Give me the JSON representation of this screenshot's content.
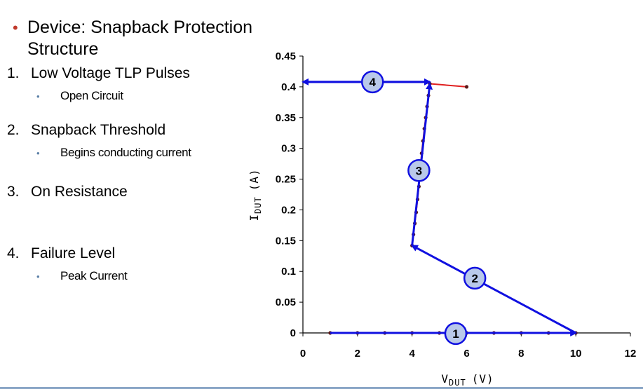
{
  "slide": {
    "heading": "Device: Snapback Protection Structure",
    "heading_line1": "Device: Snapback Protection",
    "heading_line2": "Structure",
    "items": [
      {
        "number": "1.",
        "label": "Low Voltage TLP Pulses",
        "sub": "Open Circuit"
      },
      {
        "number": "2.",
        "label": "Snapback Threshold",
        "sub": "Begins conducting current"
      },
      {
        "number": "3.",
        "label": "On Resistance",
        "sub": ""
      },
      {
        "number": "4.",
        "label": "Failure Level",
        "sub": "Peak Current"
      }
    ]
  },
  "colors": {
    "data_line": "#e02020",
    "data_marker": "#5a1a1a",
    "arrow": "#1010e0",
    "bubble_fill": "#b9c9ea",
    "bubble_stroke": "#1010e0",
    "bullet": "#c0392b"
  },
  "chart_data": {
    "type": "line",
    "title": "",
    "xlabel_main": "V",
    "xlabel_sub": "DUT",
    "xlabel_unit": "(V)",
    "ylabel_main": "I",
    "ylabel_sub": "DUT",
    "ylabel_unit": "(A)",
    "xlim": [
      0,
      12
    ],
    "ylim": [
      0,
      0.45
    ],
    "xticks": [
      "0",
      "2",
      "4",
      "6",
      "8",
      "10",
      "12"
    ],
    "yticks": [
      "0",
      "0.05",
      "0.1",
      "0.15",
      "0.2",
      "0.25",
      "0.3",
      "0.35",
      "0.4",
      "0.45"
    ],
    "grid": false,
    "series": [
      {
        "x": [
          1,
          2,
          3,
          4,
          5,
          6,
          7,
          8,
          9,
          10,
          4.0,
          4.05,
          4.1,
          4.15,
          4.2,
          4.25,
          4.35,
          4.4,
          4.45,
          4.5,
          4.55,
          4.6,
          4.65,
          6.0
        ],
        "y": [
          0,
          0,
          0,
          0,
          0,
          0,
          0,
          0,
          0,
          0,
          0.142,
          0.16,
          0.178,
          0.196,
          0.217,
          0.238,
          0.292,
          0.312,
          0.332,
          0.35,
          0.368,
          0.386,
          0.405,
          0.4
        ]
      }
    ],
    "annotations": [
      {
        "label": "1",
        "arrow_from": [
          1,
          0
        ],
        "arrow_to": [
          10,
          0
        ],
        "bubble_at": [
          5.6,
          -0.001
        ]
      },
      {
        "label": "2",
        "arrow_from": [
          10,
          0
        ],
        "arrow_to": [
          4.0,
          0.142
        ],
        "bubble_at": [
          6.3,
          0.089
        ]
      },
      {
        "label": "3",
        "arrow_from": [
          4.0,
          0.142
        ],
        "arrow_to": [
          4.65,
          0.405
        ],
        "bubble_at": [
          4.25,
          0.264
        ]
      },
      {
        "label": "4",
        "arrow_from": [
          4.65,
          0.408
        ],
        "arrow_to": [
          0,
          0.408
        ],
        "bubble_at": [
          2.55,
          0.408
        ]
      }
    ]
  }
}
